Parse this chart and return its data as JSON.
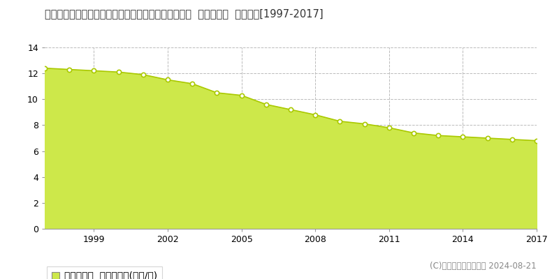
{
  "title": "福島県耶麻郡猪苗代町大字千代田字千代田２番１７外  基準地価格  地価推移[1997-2017]",
  "years": [
    1997,
    1998,
    1999,
    2000,
    2001,
    2002,
    2003,
    2004,
    2005,
    2006,
    2007,
    2008,
    2009,
    2010,
    2011,
    2012,
    2013,
    2014,
    2015,
    2016,
    2017
  ],
  "values": [
    12.4,
    12.3,
    12.2,
    12.1,
    11.9,
    11.5,
    11.2,
    10.5,
    10.3,
    9.6,
    9.2,
    8.8,
    8.3,
    8.1,
    7.8,
    7.4,
    7.2,
    7.1,
    7.0,
    6.9,
    6.8
  ],
  "fill_color": "#cde84a",
  "line_color": "#aac900",
  "marker_color": "#ffffff",
  "marker_edge_color": "#aac900",
  "grid_color": "#bbbbbb",
  "background_color": "#ffffff",
  "plot_bg_color": "#ffffff",
  "ylim": [
    0,
    14
  ],
  "yticks": [
    0,
    2,
    4,
    6,
    8,
    10,
    12,
    14
  ],
  "xticks": [
    1999,
    2002,
    2005,
    2008,
    2011,
    2014,
    2017
  ],
  "legend_label": "基準地価格  平均坪単価(万円/坪)",
  "copyright_text": "(C)土地価格ドットコム 2024-08-21",
  "title_fontsize": 10.5,
  "axis_fontsize": 9,
  "legend_fontsize": 10,
  "copyright_fontsize": 8.5
}
